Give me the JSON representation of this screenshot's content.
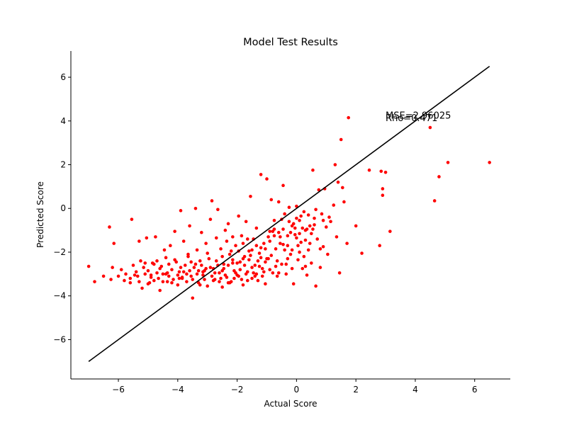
{
  "chart_data": {
    "type": "scatter",
    "title": "Model Test Results",
    "xlabel": "Actual Score",
    "ylabel": "Predicted Score",
    "xlim": [
      -7.6,
      7.2
    ],
    "ylim": [
      -7.8,
      7.2
    ],
    "xticks": [
      -6,
      -4,
      -2,
      0,
      2,
      4,
      6
    ],
    "xtick_labels": [
      "−6",
      "−4",
      "−2",
      "0",
      "2",
      "4",
      "6"
    ],
    "yticks": [
      -6,
      -4,
      -2,
      0,
      2,
      4,
      6
    ],
    "ytick_labels": [
      "−6",
      "−4",
      "−2",
      "0",
      "2",
      "4",
      "6"
    ],
    "grid": false,
    "point_color": "#ff0000",
    "line_color": "#000000",
    "reference_line": {
      "x": [
        -7.0,
        6.5
      ],
      "y": [
        -7.0,
        6.5
      ]
    },
    "annotations": [
      {
        "text": "MSE=2.96025",
        "x": 3.0,
        "y": 4.1
      },
      {
        "text": "Rho=0.471",
        "x": 3.0,
        "y": 4.0
      }
    ],
    "points": [
      [
        -7.0,
        -2.65
      ],
      [
        -6.8,
        -3.35
      ],
      [
        -6.3,
        -0.85
      ],
      [
        -6.25,
        -3.25
      ],
      [
        -6.15,
        -1.6
      ],
      [
        -6.2,
        -2.7
      ],
      [
        -6.0,
        -3.1
      ],
      [
        -5.9,
        -2.8
      ],
      [
        -5.75,
        -3.0
      ],
      [
        -5.6,
        -3.2
      ],
      [
        -5.55,
        -0.5
      ],
      [
        -5.5,
        -2.6
      ],
      [
        -5.4,
        -2.9
      ],
      [
        -5.35,
        -3.1
      ],
      [
        -5.3,
        -1.5
      ],
      [
        -5.25,
        -2.4
      ],
      [
        -5.2,
        -3.65
      ],
      [
        -5.15,
        -2.7
      ],
      [
        -5.1,
        -3.0
      ],
      [
        -5.05,
        -1.35
      ],
      [
        -5.0,
        -2.85
      ],
      [
        -4.95,
        -3.4
      ],
      [
        -4.9,
        -3.05
      ],
      [
        -4.85,
        -2.5
      ],
      [
        -4.8,
        -3.3
      ],
      [
        -4.75,
        -1.3
      ],
      [
        -4.7,
        -2.95
      ],
      [
        -4.65,
        -3.2
      ],
      [
        -4.6,
        -3.75
      ],
      [
        -4.55,
        -2.65
      ],
      [
        -4.5,
        -3.0
      ],
      [
        -4.45,
        -1.9
      ],
      [
        -4.4,
        -2.25
      ],
      [
        -4.35,
        -3.35
      ],
      [
        -4.3,
        -3.1
      ],
      [
        -4.25,
        -1.7
      ],
      [
        -4.2,
        -2.8
      ],
      [
        -4.15,
        -3.25
      ],
      [
        -4.1,
        -1.05
      ],
      [
        -4.05,
        -2.45
      ],
      [
        -4.0,
        -3.5
      ],
      [
        -3.95,
        -2.9
      ],
      [
        -3.9,
        -0.1
      ],
      [
        -3.85,
        -3.2
      ],
      [
        -3.8,
        -1.5
      ],
      [
        -3.75,
        -2.6
      ],
      [
        -3.7,
        -3.0
      ],
      [
        -3.65,
        -2.2
      ],
      [
        -3.6,
        -0.8
      ],
      [
        -3.55,
        -3.1
      ],
      [
        -3.5,
        -4.1
      ],
      [
        -3.45,
        -2.7
      ],
      [
        -3.4,
        0.0
      ],
      [
        -3.35,
        -1.9
      ],
      [
        -3.3,
        -3.4
      ],
      [
        -3.25,
        -2.4
      ],
      [
        -3.2,
        -1.1
      ],
      [
        -3.15,
        -3.05
      ],
      [
        -3.1,
        -2.85
      ],
      [
        -3.05,
        -1.6
      ],
      [
        -3.0,
        -3.55
      ],
      [
        -2.95,
        -2.3
      ],
      [
        -2.9,
        -0.5
      ],
      [
        -2.85,
        0.35
      ],
      [
        -2.8,
        -2.75
      ],
      [
        -2.75,
        -3.25
      ],
      [
        -2.7,
        -1.35
      ],
      [
        -2.65,
        -0.05
      ],
      [
        -2.6,
        -2.95
      ],
      [
        -2.55,
        -1.85
      ],
      [
        -2.5,
        -3.6
      ],
      [
        -2.45,
        -2.55
      ],
      [
        -2.4,
        -1.0
      ],
      [
        -2.35,
        -3.15
      ],
      [
        -2.3,
        -0.7
      ],
      [
        -2.25,
        -2.1
      ],
      [
        -2.2,
        -3.35
      ],
      [
        -2.15,
        -1.3
      ],
      [
        -2.1,
        -2.85
      ],
      [
        -2.05,
        -1.7
      ],
      [
        -2.0,
        -3.05
      ],
      [
        -1.95,
        -0.35
      ],
      [
        -1.9,
        -2.45
      ],
      [
        -1.85,
        -1.25
      ],
      [
        -1.8,
        -3.5
      ],
      [
        -1.75,
        -2.2
      ],
      [
        -1.7,
        -0.6
      ],
      [
        -1.65,
        -2.9
      ],
      [
        -1.6,
        -1.95
      ],
      [
        -1.55,
        0.55
      ],
      [
        -1.5,
        -3.2
      ],
      [
        -1.45,
        -1.4
      ],
      [
        -1.4,
        -2.6
      ],
      [
        -1.35,
        -0.9
      ],
      [
        -1.3,
        -3.3
      ],
      [
        -1.25,
        -2.05
      ],
      [
        -1.2,
        1.55
      ],
      [
        -1.15,
        -2.75
      ],
      [
        -1.1,
        -1.6
      ],
      [
        -1.05,
        -3.45
      ],
      [
        -1.0,
        1.35
      ],
      [
        -0.95,
        -2.3
      ],
      [
        -0.9,
        -1.05
      ],
      [
        -0.85,
        0.4
      ],
      [
        -0.8,
        -2.95
      ],
      [
        -0.75,
        -0.55
      ],
      [
        -0.7,
        -1.85
      ],
      [
        -0.65,
        -3.1
      ],
      [
        -0.6,
        0.3
      ],
      [
        -0.55,
        -1.3
      ],
      [
        -0.5,
        -2.55
      ],
      [
        -0.45,
        1.05
      ],
      [
        -0.4,
        -0.25
      ],
      [
        -0.35,
        -3.0
      ],
      [
        -0.3,
        -1.7
      ],
      [
        -0.25,
        0.05
      ],
      [
        -0.2,
        -2.1
      ],
      [
        -0.15,
        -0.8
      ],
      [
        -0.1,
        -3.45
      ],
      [
        -0.05,
        -1.2
      ],
      [
        0.0,
        0.1
      ],
      [
        0.05,
        -2.35
      ],
      [
        0.1,
        -0.55
      ],
      [
        0.15,
        -1.55
      ],
      [
        0.2,
        -2.75
      ],
      [
        0.25,
        -0.15
      ],
      [
        0.3,
        -1.0
      ],
      [
        0.35,
        -3.05
      ],
      [
        0.4,
        -1.9
      ],
      [
        0.45,
        -0.8
      ],
      [
        0.5,
        -2.5
      ],
      [
        0.55,
        1.75
      ],
      [
        0.6,
        -0.45
      ],
      [
        0.65,
        -3.55
      ],
      [
        0.7,
        -1.4
      ],
      [
        0.75,
        0.85
      ],
      [
        0.8,
        -2.7
      ],
      [
        0.85,
        -0.25
      ],
      [
        0.9,
        -1.75
      ],
      [
        0.95,
        0.9
      ],
      [
        1.0,
        -0.85
      ],
      [
        1.05,
        -2.1
      ],
      [
        1.15,
        -0.6
      ],
      [
        1.25,
        0.15
      ],
      [
        1.3,
        2.0
      ],
      [
        1.35,
        -1.3
      ],
      [
        1.4,
        1.2
      ],
      [
        1.45,
        -2.95
      ],
      [
        1.5,
        3.15
      ],
      [
        1.55,
        0.95
      ],
      [
        1.6,
        0.3
      ],
      [
        1.7,
        -1.6
      ],
      [
        1.75,
        4.15
      ],
      [
        2.0,
        -0.8
      ],
      [
        2.2,
        -2.05
      ],
      [
        2.45,
        1.75
      ],
      [
        2.8,
        -1.7
      ],
      [
        2.85,
        1.7
      ],
      [
        2.9,
        0.6
      ],
      [
        2.9,
        0.9
      ],
      [
        3.0,
        1.65
      ],
      [
        3.15,
        -1.05
      ],
      [
        4.5,
        3.7
      ],
      [
        4.65,
        0.35
      ],
      [
        4.8,
        1.45
      ],
      [
        5.1,
        2.1
      ],
      [
        6.5,
        2.1
      ],
      [
        -5.8,
        -3.3
      ],
      [
        -5.45,
        -3.05
      ],
      [
        -5.0,
        -3.45
      ],
      [
        -4.7,
        -2.4
      ],
      [
        -4.3,
        -2.55
      ],
      [
        -4.0,
        -3.05
      ],
      [
        -3.9,
        -2.7
      ],
      [
        -3.7,
        -3.35
      ],
      [
        -3.55,
        -2.45
      ],
      [
        -3.3,
        -2.85
      ],
      [
        -3.2,
        -2.6
      ],
      [
        -3.1,
        -3.25
      ],
      [
        -2.9,
        -2.7
      ],
      [
        -2.75,
        -2.95
      ],
      [
        -2.6,
        -3.35
      ],
      [
        -2.5,
        -2.2
      ],
      [
        -2.4,
        -3.05
      ],
      [
        -2.3,
        -2.6
      ],
      [
        -2.2,
        -1.95
      ],
      [
        -2.1,
        -3.2
      ],
      [
        -2.0,
        -2.5
      ],
      [
        -1.9,
        -2.8
      ],
      [
        -1.8,
        -1.6
      ],
      [
        -1.7,
        -3.0
      ],
      [
        -1.6,
        -2.35
      ],
      [
        -1.5,
        -1.9
      ],
      [
        -1.4,
        -3.1
      ],
      [
        -1.3,
        -2.4
      ],
      [
        -1.2,
        -1.8
      ],
      [
        -1.1,
        -2.9
      ],
      [
        -1.0,
        -2.3
      ],
      [
        -0.9,
        -1.5
      ],
      [
        -0.8,
        -1.05
      ],
      [
        -0.7,
        -2.65
      ],
      [
        -0.6,
        -1.1
      ],
      [
        -0.5,
        -0.5
      ],
      [
        -0.4,
        -1.9
      ],
      [
        -0.3,
        -2.3
      ],
      [
        -0.2,
        -1.1
      ],
      [
        -0.1,
        -0.7
      ],
      [
        0.0,
        -1.35
      ],
      [
        0.1,
        -2.0
      ],
      [
        0.2,
        -0.9
      ],
      [
        0.3,
        -2.65
      ],
      [
        0.4,
        -0.3
      ],
      [
        0.5,
        -1.15
      ],
      [
        0.6,
        -0.75
      ],
      [
        0.8,
        -1.85
      ],
      [
        0.9,
        -0.55
      ],
      [
        1.1,
        -0.4
      ],
      [
        -6.5,
        -3.1
      ],
      [
        -5.6,
        -3.4
      ],
      [
        -5.1,
        -2.5
      ],
      [
        -4.9,
        -3.15
      ],
      [
        -4.6,
        -2.75
      ],
      [
        -4.4,
        -3.0
      ],
      [
        -4.2,
        -3.4
      ],
      [
        -4.1,
        -2.35
      ],
      [
        -3.95,
        -3.2
      ],
      [
        -3.8,
        -2.9
      ],
      [
        -3.65,
        -2.1
      ],
      [
        -3.5,
        -3.25
      ],
      [
        -3.4,
        -2.55
      ],
      [
        -3.25,
        -3.5
      ],
      [
        -3.15,
        -2.9
      ],
      [
        -3.0,
        -2.05
      ],
      [
        -2.85,
        -3.1
      ],
      [
        -2.7,
        -2.4
      ],
      [
        -2.55,
        -3.2
      ],
      [
        -2.45,
        -2.75
      ],
      [
        -2.35,
        -1.5
      ],
      [
        -2.25,
        -3.4
      ],
      [
        -2.15,
        -2.5
      ],
      [
        -2.05,
        -2.95
      ],
      [
        -1.95,
        -1.95
      ],
      [
        -1.85,
        -3.25
      ],
      [
        -1.75,
        -2.6
      ],
      [
        -1.65,
        -3.3
      ],
      [
        -1.55,
        -2.15
      ],
      [
        -1.45,
        -2.95
      ],
      [
        -1.35,
        -1.7
      ],
      [
        -1.25,
        -2.65
      ],
      [
        -1.15,
        -3.1
      ],
      [
        -1.05,
        -2.45
      ],
      [
        -0.95,
        -1.3
      ],
      [
        -0.85,
        -2.15
      ],
      [
        -0.75,
        -0.95
      ],
      [
        -0.65,
        -2.4
      ],
      [
        -0.55,
        -1.6
      ],
      [
        -0.45,
        -0.95
      ],
      [
        -0.35,
        -2.55
      ],
      [
        -0.25,
        -0.6
      ],
      [
        -0.15,
        -1.9
      ],
      [
        -0.05,
        -0.9
      ],
      [
        0.05,
        -1.7
      ],
      [
        0.15,
        -0.35
      ],
      [
        0.25,
        -2.2
      ],
      [
        0.35,
        -0.95
      ],
      [
        0.45,
        -1.6
      ],
      [
        0.65,
        -0.05
      ],
      [
        -5.3,
        -3.35
      ],
      [
        -4.8,
        -2.55
      ],
      [
        -4.5,
        -3.35
      ],
      [
        -4.35,
        -2.95
      ],
      [
        -3.85,
        -3.15
      ],
      [
        -3.6,
        -2.85
      ],
      [
        -3.35,
        -3.0
      ],
      [
        -3.05,
        -2.75
      ],
      [
        -2.8,
        -3.3
      ],
      [
        -2.65,
        -2.6
      ],
      [
        -2.5,
        -2.85
      ],
      [
        -2.3,
        -3.4
      ],
      [
        -2.15,
        -2.35
      ],
      [
        -1.95,
        -3.1
      ],
      [
        -1.8,
        -2.3
      ],
      [
        -1.65,
        -1.4
      ],
      [
        -1.5,
        -2.7
      ],
      [
        -1.35,
        -3.0
      ],
      [
        -1.2,
        -2.25
      ],
      [
        -1.05,
        -1.85
      ],
      [
        -0.9,
        -2.8
      ],
      [
        -0.75,
        -1.25
      ],
      [
        -0.6,
        -2.95
      ],
      [
        -0.45,
        -1.65
      ],
      [
        -0.3,
        -1.25
      ],
      [
        -0.15,
        -2.75
      ],
      [
        0.0,
        -0.45
      ],
      [
        0.1,
        -1.15
      ],
      [
        0.3,
        -1.45
      ],
      [
        0.55,
        -0.95
      ]
    ]
  }
}
